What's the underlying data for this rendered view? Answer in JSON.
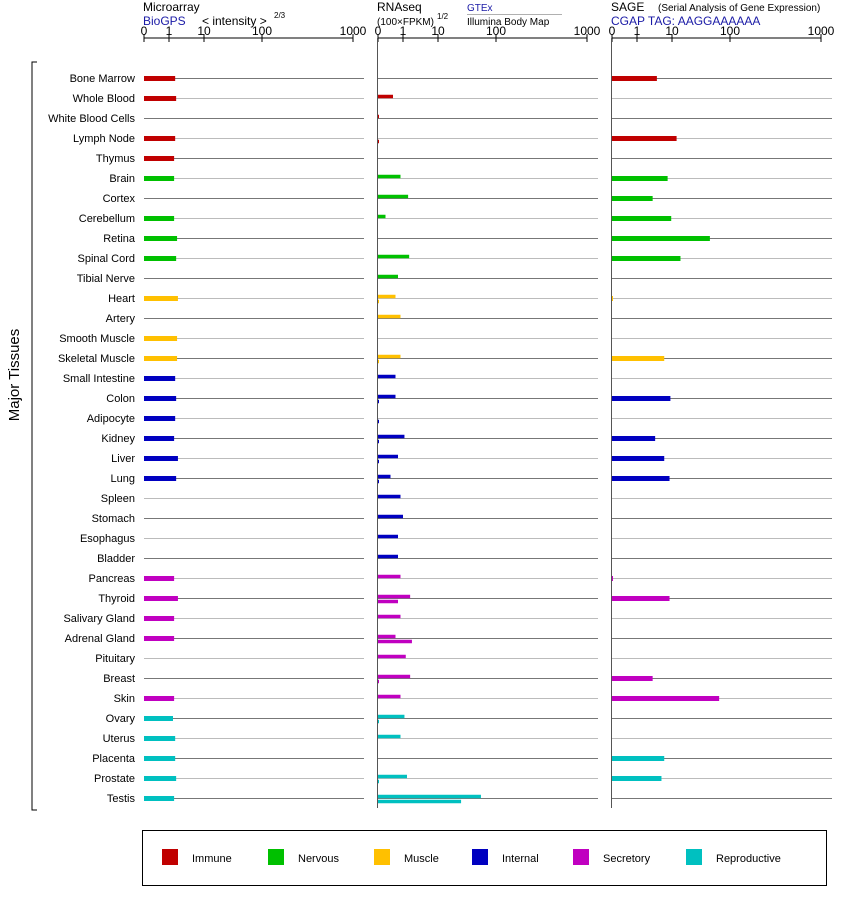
{
  "panels": [
    {
      "title": "Microarray",
      "subtitle_source": "BioGPS",
      "subtitle_extra": "< intensity >",
      "subtitle_exp": "2/3",
      "ticks": [
        "0",
        "1",
        "10",
        "100",
        "1000"
      ]
    },
    {
      "title": "RNAseq",
      "subtitle_formula": "(100×FPKM)",
      "subtitle_exp": "1/2",
      "source_top": "GTEx",
      "source_bottom": "Illumina Body Map",
      "ticks": [
        "0",
        "1",
        "10",
        "100",
        "1000"
      ]
    },
    {
      "title": "SAGE",
      "title_note": "(Serial Analysis of Gene Expression)",
      "subtitle_source": "CGAP TAG: AAGGAAAAAA",
      "ticks": [
        "0",
        "1",
        "10",
        "100",
        "1000"
      ]
    }
  ],
  "y_axis_label": "Major Tissues",
  "legend": [
    {
      "name": "Immune",
      "color": "#c00000"
    },
    {
      "name": "Nervous",
      "color": "#00c000"
    },
    {
      "name": "Muscle",
      "color": "#ffc000"
    },
    {
      "name": "Internal",
      "color": "#0000c0"
    },
    {
      "name": "Secretory",
      "color": "#c000c0"
    },
    {
      "name": "Reproductive",
      "color": "#00c0c0"
    }
  ],
  "chart_data": {
    "type": "bar",
    "orientation": "horizontal",
    "x_scale": "log-like (0, 1, 10, 100, 1000)",
    "xlim": [
      0,
      1000
    ],
    "categories": [
      "Bone Marrow",
      "Whole Blood",
      "White Blood Cells",
      "Lymph Node",
      "Thymus",
      "Brain",
      "Cortex",
      "Cerebellum",
      "Retina",
      "Spinal Cord",
      "Tibial Nerve",
      "Heart",
      "Artery",
      "Smooth Muscle",
      "Skeletal Muscle",
      "Small Intestine",
      "Colon",
      "Adipocyte",
      "Kidney",
      "Liver",
      "Lung",
      "Spleen",
      "Stomach",
      "Esophagus",
      "Bladder",
      "Pancreas",
      "Thyroid",
      "Salivary Gland",
      "Adrenal Gland",
      "Pituitary",
      "Breast",
      "Skin",
      "Ovary",
      "Uterus",
      "Placenta",
      "Prostate",
      "Testis"
    ],
    "groups": [
      "Immune",
      "Immune",
      "Immune",
      "Immune",
      "Immune",
      "Nervous",
      "Nervous",
      "Nervous",
      "Nervous",
      "Nervous",
      "Nervous",
      "Muscle",
      "Muscle",
      "Muscle",
      "Muscle",
      "Internal",
      "Internal",
      "Internal",
      "Internal",
      "Internal",
      "Internal",
      "Internal",
      "Internal",
      "Internal",
      "Internal",
      "Secretory",
      "Secretory",
      "Secretory",
      "Secretory",
      "Secretory",
      "Secretory",
      "Secretory",
      "Reproductive",
      "Reproductive",
      "Reproductive",
      "Reproductive",
      "Reproductive"
    ],
    "series": [
      {
        "name": "Microarray",
        "values": [
          1.5,
          1.6,
          null,
          1.5,
          1.4,
          1.4,
          null,
          1.4,
          1.7,
          1.6,
          null,
          1.8,
          null,
          1.7,
          1.7,
          1.5,
          1.6,
          1.5,
          1.4,
          1.8,
          1.6,
          null,
          null,
          null,
          null,
          1.4,
          1.8,
          1.4,
          1.4,
          null,
          null,
          1.4,
          1.3,
          1.5,
          1.5,
          1.6,
          1.4
        ]
      },
      {
        "name": "RNAseq (GTEx)",
        "values": [
          null,
          0.6,
          0.01,
          null,
          null,
          0.9,
          1.4,
          0.3,
          null,
          1.5,
          0.8,
          0.7,
          0.9,
          null,
          0.9,
          0.7,
          0.7,
          null,
          1.1,
          0.8,
          0.5,
          0.9,
          1.0,
          0.8,
          0.8,
          0.9,
          1.6,
          0.9,
          0.7,
          1.2,
          1.6,
          0.9,
          1.1,
          0.9,
          null,
          1.3,
          55
        ]
      },
      {
        "name": "RNAseq (Illumina Body Map)",
        "values": [
          null,
          null,
          null,
          0.02,
          null,
          null,
          null,
          null,
          null,
          null,
          null,
          0.02,
          null,
          null,
          0.02,
          null,
          0.04,
          0.04,
          0.03,
          0.02,
          0.02,
          null,
          null,
          null,
          null,
          null,
          0.8,
          null,
          1.8,
          null,
          0.03,
          null,
          0.02,
          null,
          null,
          0.02,
          25
        ]
      },
      {
        "name": "SAGE",
        "values": [
          3.7,
          null,
          null,
          12,
          null,
          7.5,
          2.8,
          9.5,
          45,
          14,
          null,
          0.01,
          null,
          null,
          6,
          null,
          9,
          null,
          3.3,
          6,
          8.5,
          null,
          null,
          null,
          null,
          0.03,
          8.5,
          null,
          null,
          null,
          2.8,
          65,
          null,
          null,
          6,
          5,
          null
        ]
      }
    ],
    "ticks": [
      "0",
      "1",
      "10",
      "100",
      "1000"
    ]
  }
}
